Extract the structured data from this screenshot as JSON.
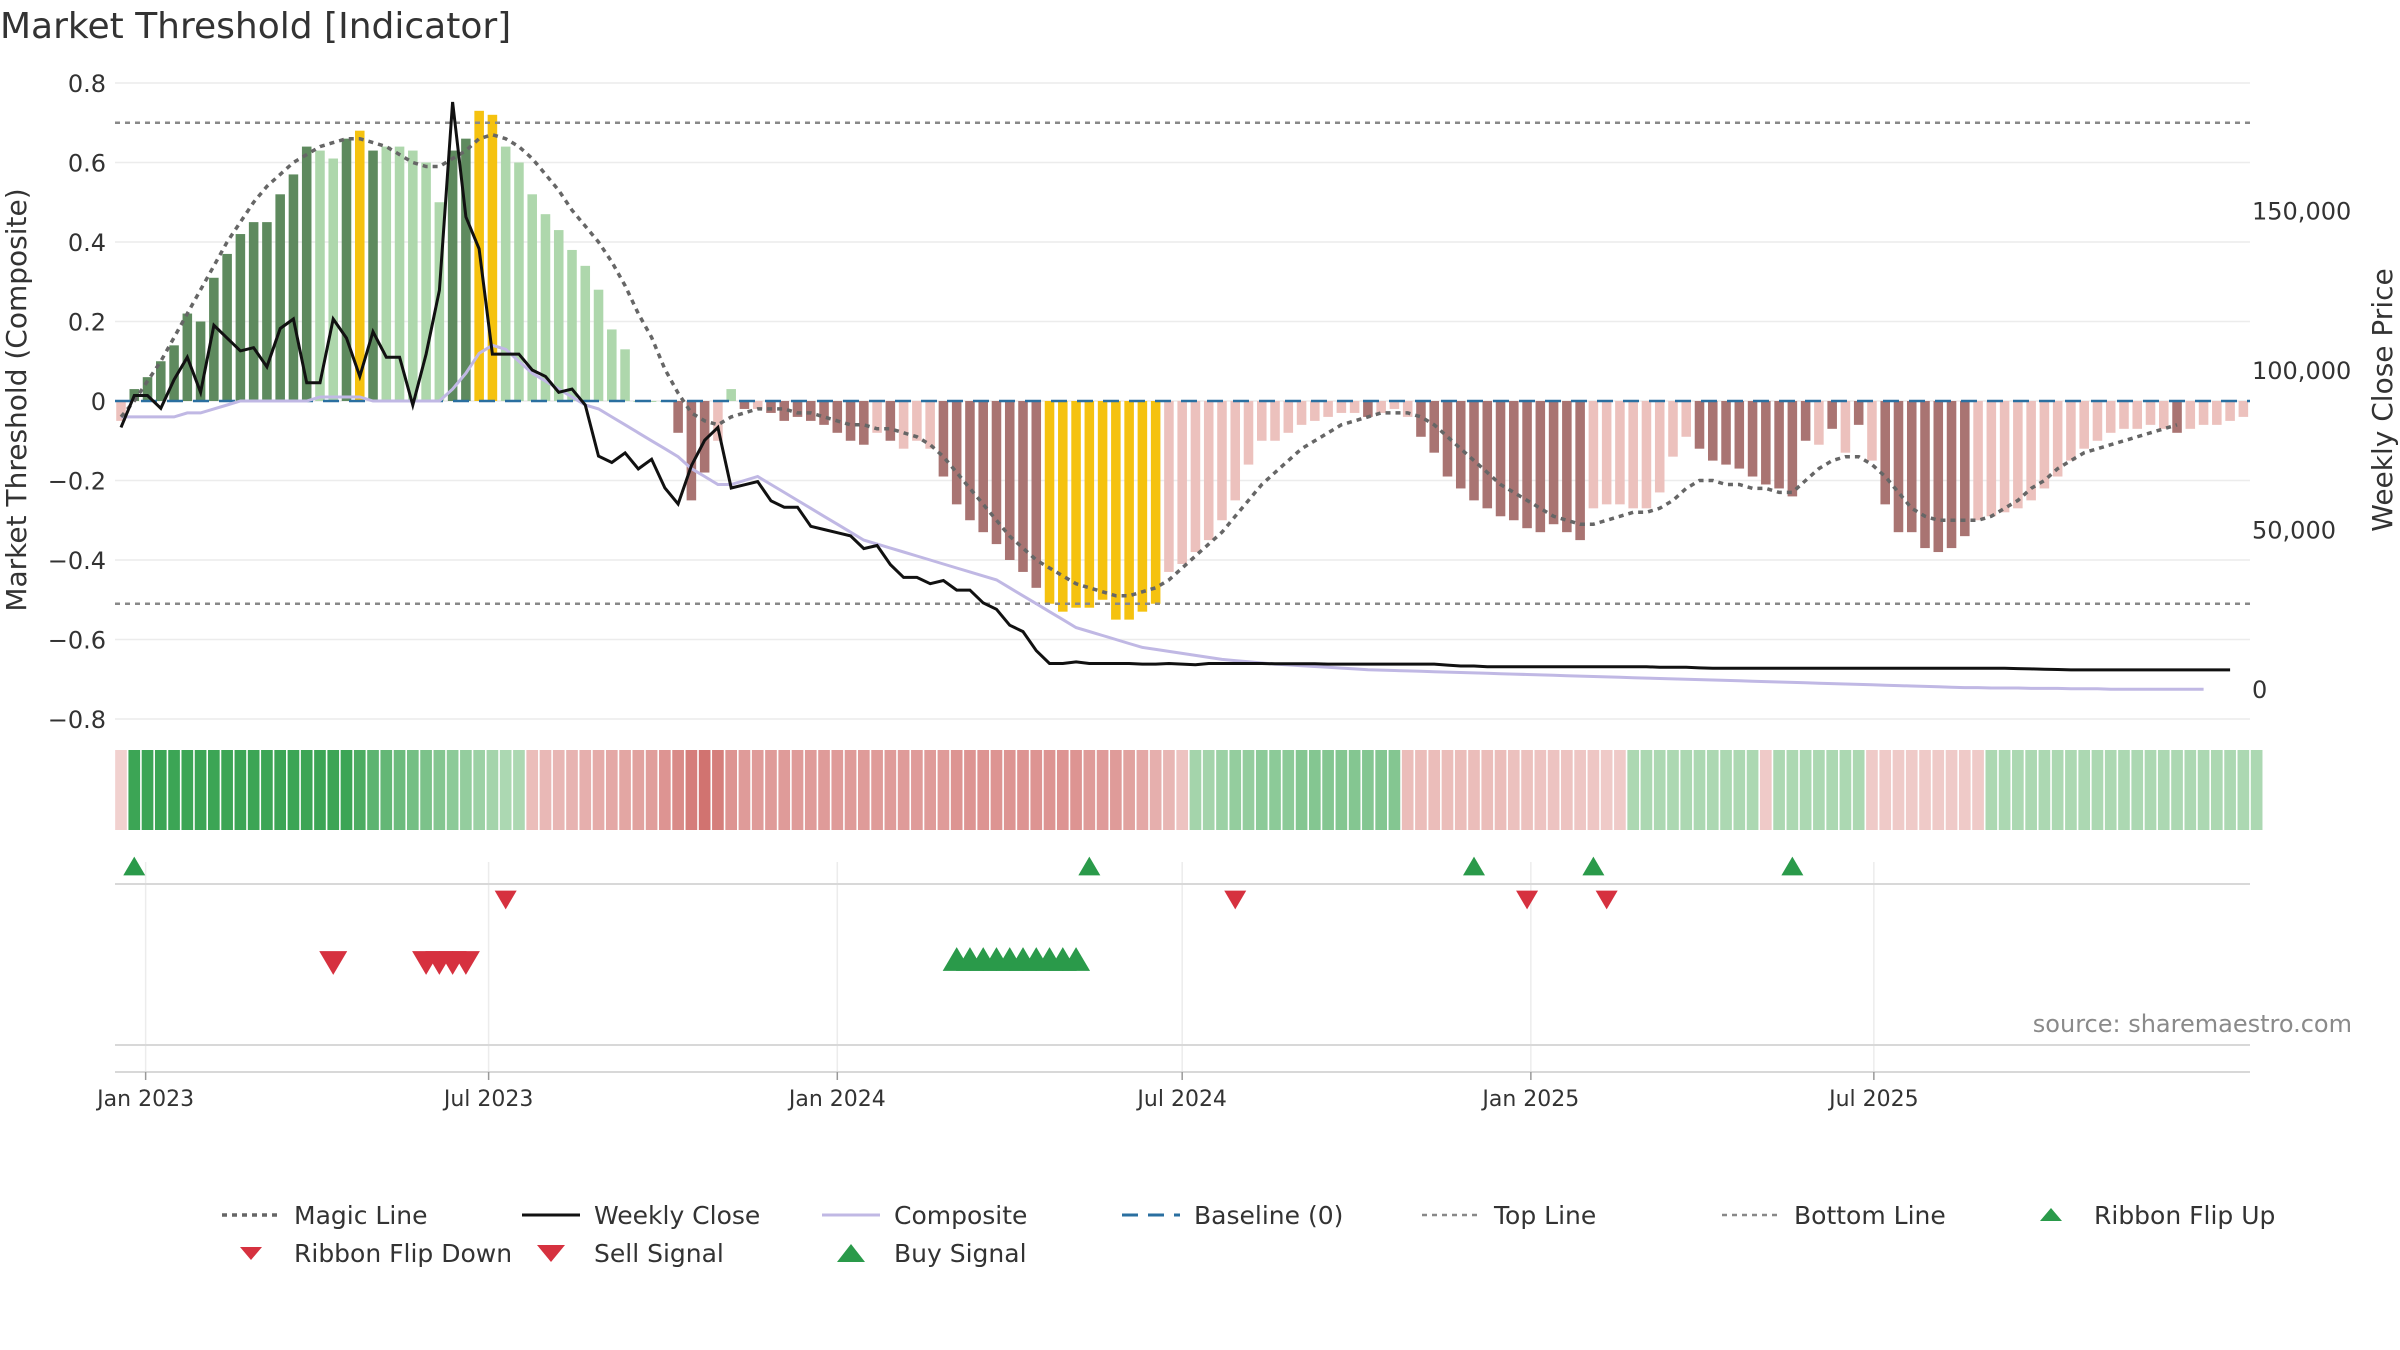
{
  "chart_title": "Market Threshold [Indicator]",
  "source": "source: sharemaestro.com",
  "colors": {
    "bar_dark_green": "#5e8a5e",
    "bar_light_green": "#aed7ac",
    "bar_yellow": "#f5c20f",
    "bar_dark_red": "#a97472",
    "bar_light_red": "#ecc1bd",
    "magic_line": "#666666",
    "weekly_close": "#111111",
    "composite": "#c0b8e4",
    "baseline": "#2a6fa0",
    "threshold": "#888888",
    "buy": "#2a9a4a",
    "sell": "#d6313f"
  },
  "chart_data": {
    "type": "bar",
    "title": "Market Threshold [Indicator]",
    "ylabel": "Market Threshold (Composite)",
    "ylabel_right": "Weekly Close Price",
    "ylim": [
      -0.8,
      0.8
    ],
    "ylim_right": [
      0,
      200000
    ],
    "yticks": [
      0.8,
      0.6,
      0.4,
      0.2,
      0,
      -0.2,
      -0.4,
      -0.6,
      -0.8
    ],
    "yticks_labels": [
      "0.8",
      "0.6",
      "0.4",
      "0.2",
      "0",
      "−0.2",
      "−0.4",
      "−0.6",
      "−0.8"
    ],
    "yticks_right": [
      150000,
      100000,
      50000,
      0
    ],
    "yticks_right_labels": [
      "150,000",
      "100,000",
      "50,000",
      "0"
    ],
    "x_start": "2022-12-19",
    "x_step_days": 7,
    "x_ticks": [
      "2023-01-01",
      "2023-07-01",
      "2024-01-01",
      "2024-07-01",
      "2025-01-01",
      "2025-07-01"
    ],
    "x_tick_labels": [
      "Jan 2023",
      "Jul 2023",
      "Jan 2024",
      "Jul 2024",
      "Jan 2025",
      "Jul 2025"
    ],
    "top_line": 0.7,
    "bottom_line": -0.51,
    "baseline": 0,
    "histogram": [
      -0.05,
      0.03,
      0.06,
      0.1,
      0.14,
      0.22,
      0.2,
      0.31,
      0.37,
      0.42,
      0.45,
      0.45,
      0.52,
      0.57,
      0.64,
      0.63,
      0.61,
      0.66,
      0.68,
      0.63,
      0.64,
      0.64,
      0.63,
      0.6,
      0.5,
      0.63,
      0.66,
      0.73,
      0.72,
      0.64,
      0.6,
      0.52,
      0.47,
      0.43,
      0.38,
      0.34,
      0.28,
      0.18,
      0.13,
      0,
      0,
      0,
      -0.08,
      -0.25,
      -0.18,
      -0.1,
      0.03,
      -0.02,
      -0.02,
      -0.03,
      -0.05,
      -0.04,
      -0.05,
      -0.06,
      -0.08,
      -0.1,
      -0.11,
      -0.08,
      -0.1,
      -0.12,
      -0.1,
      -0.12,
      -0.19,
      -0.26,
      -0.3,
      -0.33,
      -0.36,
      -0.4,
      -0.43,
      -0.47,
      -0.51,
      -0.53,
      -0.52,
      -0.52,
      -0.5,
      -0.55,
      -0.55,
      -0.53,
      -0.51,
      -0.43,
      -0.41,
      -0.38,
      -0.35,
      -0.3,
      -0.25,
      -0.16,
      -0.1,
      -0.1,
      -0.08,
      -0.06,
      -0.05,
      -0.04,
      -0.03,
      -0.03,
      -0.04,
      -0.03,
      -0.02,
      -0.04,
      -0.09,
      -0.13,
      -0.19,
      -0.22,
      -0.25,
      -0.27,
      -0.29,
      -0.3,
      -0.32,
      -0.33,
      -0.31,
      -0.33,
      -0.35,
      -0.27,
      -0.26,
      -0.26,
      -0.27,
      -0.27,
      -0.23,
      -0.14,
      -0.09,
      -0.12,
      -0.15,
      -0.16,
      -0.17,
      -0.19,
      -0.21,
      -0.22,
      -0.24,
      -0.1,
      -0.11,
      -0.07,
      -0.13,
      -0.06,
      -0.15,
      -0.26,
      -0.33,
      -0.33,
      -0.37,
      -0.38,
      -0.37,
      -0.34,
      -0.3,
      -0.29,
      -0.28,
      -0.27,
      -0.25,
      -0.22,
      -0.19,
      -0.15,
      -0.12,
      -0.1,
      -0.08,
      -0.07,
      -0.07,
      -0.06,
      -0.07,
      -0.08,
      -0.07,
      -0.06,
      -0.06,
      -0.05,
      -0.04
    ],
    "histogram_colors": [
      "lr",
      "dg",
      "dg",
      "dg",
      "dg",
      "dg",
      "dg",
      "dg",
      "dg",
      "dg",
      "dg",
      "dg",
      "dg",
      "dg",
      "dg",
      "lg",
      "lg",
      "dg",
      "y",
      "dg",
      "lg",
      "lg",
      "lg",
      "lg",
      "lg",
      "dg",
      "dg",
      "y",
      "y",
      "lg",
      "lg",
      "lg",
      "lg",
      "lg",
      "lg",
      "lg",
      "lg",
      "lg",
      "lg",
      "lg",
      "lg",
      "lg",
      "dr",
      "dr",
      "dr",
      "lr",
      "lg",
      "dr",
      "lr",
      "dr",
      "dr",
      "dr",
      "dr",
      "dr",
      "dr",
      "dr",
      "dr",
      "lr",
      "dr",
      "lr",
      "lr",
      "lr",
      "dr",
      "dr",
      "dr",
      "dr",
      "dr",
      "dr",
      "dr",
      "dr",
      "y",
      "y",
      "y",
      "y",
      "y",
      "y",
      "y",
      "y",
      "y",
      "lr",
      "lr",
      "lr",
      "lr",
      "lr",
      "lr",
      "lr",
      "lr",
      "lr",
      "lr",
      "lr",
      "lr",
      "lr",
      "lr",
      "lr",
      "dr",
      "lr",
      "lr",
      "lr",
      "dr",
      "dr",
      "dr",
      "dr",
      "dr",
      "dr",
      "dr",
      "dr",
      "dr",
      "dr",
      "dr",
      "dr",
      "dr",
      "lr",
      "lr",
      "lr",
      "lr",
      "lr",
      "lr",
      "lr",
      "lr",
      "dr",
      "dr",
      "dr",
      "dr",
      "dr",
      "dr",
      "dr",
      "dr",
      "dr",
      "lr",
      "dr",
      "lr",
      "dr",
      "lr",
      "dr",
      "dr",
      "dr",
      "dr",
      "dr",
      "dr",
      "dr",
      "lr",
      "lr",
      "lr",
      "lr",
      "lr",
      "lr",
      "lr",
      "lr",
      "lr",
      "lr",
      "lr",
      "lr",
      "lr",
      "lr",
      "lr",
      "dr",
      "lr",
      "lr",
      "lr",
      "lr",
      "lr"
    ],
    "magic_line": [
      -0.04,
      0,
      0.05,
      0.1,
      0.16,
      0.22,
      0.28,
      0.34,
      0.4,
      0.45,
      0.5,
      0.54,
      0.57,
      0.6,
      0.62,
      0.64,
      0.65,
      0.66,
      0.66,
      0.65,
      0.64,
      0.62,
      0.6,
      0.59,
      0.59,
      0.61,
      0.63,
      0.66,
      0.67,
      0.66,
      0.64,
      0.61,
      0.57,
      0.53,
      0.48,
      0.44,
      0.4,
      0.35,
      0.29,
      0.22,
      0.16,
      0.08,
      0.02,
      -0.03,
      -0.05,
      -0.06,
      -0.04,
      -0.03,
      -0.02,
      -0.02,
      -0.02,
      -0.03,
      -0.03,
      -0.04,
      -0.05,
      -0.06,
      -0.06,
      -0.07,
      -0.07,
      -0.08,
      -0.09,
      -0.11,
      -0.14,
      -0.18,
      -0.22,
      -0.26,
      -0.3,
      -0.34,
      -0.37,
      -0.4,
      -0.42,
      -0.44,
      -0.46,
      -0.47,
      -0.48,
      -0.49,
      -0.49,
      -0.48,
      -0.47,
      -0.45,
      -0.42,
      -0.39,
      -0.36,
      -0.33,
      -0.29,
      -0.25,
      -0.21,
      -0.18,
      -0.15,
      -0.12,
      -0.1,
      -0.08,
      -0.06,
      -0.05,
      -0.04,
      -0.03,
      -0.03,
      -0.03,
      -0.04,
      -0.06,
      -0.09,
      -0.12,
      -0.15,
      -0.18,
      -0.21,
      -0.23,
      -0.25,
      -0.27,
      -0.29,
      -0.3,
      -0.31,
      -0.31,
      -0.3,
      -0.29,
      -0.28,
      -0.28,
      -0.27,
      -0.25,
      -0.22,
      -0.2,
      -0.2,
      -0.21,
      -0.21,
      -0.22,
      -0.22,
      -0.23,
      -0.23,
      -0.2,
      -0.17,
      -0.15,
      -0.14,
      -0.14,
      -0.16,
      -0.19,
      -0.23,
      -0.27,
      -0.29,
      -0.3,
      -0.3,
      -0.3,
      -0.3,
      -0.29,
      -0.27,
      -0.25,
      -0.22,
      -0.2,
      -0.17,
      -0.15,
      -0.13,
      -0.12,
      -0.11,
      -0.1,
      -0.09,
      -0.08,
      -0.07,
      -0.06
    ],
    "composite": [
      -0.04,
      -0.04,
      -0.04,
      -0.04,
      -0.04,
      -0.03,
      -0.03,
      -0.02,
      -0.01,
      0,
      0,
      0,
      0,
      0,
      0,
      0.01,
      0.01,
      0.01,
      0.01,
      0,
      0,
      0,
      0,
      0,
      0,
      0.03,
      0.07,
      0.12,
      0.14,
      0.13,
      0.1,
      0.07,
      0.05,
      0.03,
      0.01,
      -0.01,
      -0.02,
      -0.04,
      -0.06,
      -0.08,
      -0.1,
      -0.12,
      -0.14,
      -0.17,
      -0.19,
      -0.21,
      -0.21,
      -0.2,
      -0.19,
      -0.21,
      -0.23,
      -0.25,
      -0.27,
      -0.29,
      -0.31,
      -0.33,
      -0.35,
      -0.36,
      -0.37,
      -0.38,
      -0.39,
      -0.4,
      -0.41,
      -0.42,
      -0.43,
      -0.44,
      -0.45,
      -0.47,
      -0.49,
      -0.51,
      -0.53,
      -0.55,
      -0.57,
      -0.58,
      -0.59,
      -0.6,
      -0.61,
      -0.62,
      -0.625,
      -0.63,
      -0.635,
      -0.64,
      -0.645,
      -0.65,
      -0.653,
      -0.656,
      -0.659,
      -0.662,
      -0.664,
      -0.666,
      -0.668,
      -0.67,
      -0.672,
      -0.674,
      -0.676,
      -0.677,
      -0.678,
      -0.679,
      -0.68,
      -0.681,
      -0.682,
      -0.683,
      -0.684,
      -0.685,
      -0.686,
      -0.687,
      -0.688,
      -0.689,
      -0.69,
      -0.691,
      -0.692,
      -0.693,
      -0.694,
      -0.695,
      -0.696,
      -0.697,
      -0.698,
      -0.699,
      -0.7,
      -0.701,
      -0.702,
      -0.703,
      -0.704,
      -0.705,
      -0.706,
      -0.707,
      -0.708,
      -0.709,
      -0.71,
      -0.711,
      -0.712,
      -0.713,
      -0.714,
      -0.715,
      -0.716,
      -0.717,
      -0.718,
      -0.719,
      -0.72,
      -0.721,
      -0.721,
      -0.722,
      -0.722,
      -0.722,
      -0.723,
      -0.723,
      -0.723,
      -0.724,
      -0.724,
      -0.724,
      -0.725,
      -0.725,
      -0.725,
      -0.725,
      -0.725,
      -0.725,
      -0.725,
      -0.725
    ],
    "weekly_close": [
      82000,
      92000,
      92000,
      88000,
      97000,
      104000,
      93000,
      114000,
      110000,
      106000,
      107000,
      101000,
      113000,
      116000,
      96000,
      96000,
      116000,
      110000,
      98000,
      112000,
      104000,
      104000,
      89000,
      105000,
      125000,
      184000,
      148000,
      138000,
      105000,
      105000,
      105000,
      100000,
      98000,
      93000,
      94000,
      89000,
      73000,
      71000,
      74000,
      69000,
      72000,
      63000,
      58000,
      70000,
      78000,
      82000,
      63000,
      64000,
      65000,
      59000,
      57000,
      57000,
      51000,
      50000,
      49000,
      48000,
      44000,
      45000,
      39000,
      35000,
      35000,
      33000,
      34000,
      31000,
      31000,
      27000,
      25000,
      20000,
      18000,
      12000,
      8000,
      8000,
      8500,
      8000,
      8000,
      8000,
      8000,
      7800,
      7800,
      8000,
      7800,
      7600,
      8000,
      8000,
      8000,
      8000,
      8000,
      7900,
      7900,
      7900,
      7900,
      7800,
      7800,
      7800,
      7800,
      7800,
      7800,
      7800,
      7800,
      7800,
      7500,
      7200,
      7200,
      7000,
      7000,
      7000,
      7000,
      7000,
      7000,
      7000,
      7000,
      7000,
      7000,
      7000,
      7000,
      7000,
      6800,
      6800,
      6800,
      6600,
      6500,
      6500,
      6500,
      6500,
      6500,
      6500,
      6500,
      6500,
      6500,
      6500,
      6500,
      6500,
      6500,
      6500,
      6500,
      6500,
      6500,
      6500,
      6500,
      6500,
      6500,
      6500,
      6500,
      6400,
      6300,
      6200,
      6100,
      6000,
      6000,
      6000,
      6000,
      6000,
      6000,
      6000,
      6000,
      6000,
      6000,
      6000,
      6000,
      6000
    ],
    "ribbon": [
      -0.1,
      1,
      1,
      1,
      1,
      1,
      1,
      1,
      1,
      1,
      1,
      1,
      1,
      1,
      1,
      1,
      1,
      1,
      0.9,
      0.8,
      0.75,
      0.7,
      0.65,
      0.6,
      0.55,
      0.5,
      0.45,
      0.4,
      0.35,
      0.3,
      0.3,
      -0.25,
      -0.28,
      -0.3,
      -0.32,
      -0.35,
      -0.38,
      -0.4,
      -0.42,
      -0.45,
      -0.48,
      -0.55,
      -0.62,
      -0.72,
      -0.8,
      -0.72,
      -0.55,
      -0.5,
      -0.5,
      -0.5,
      -0.5,
      -0.5,
      -0.5,
      -0.5,
      -0.5,
      -0.5,
      -0.5,
      -0.5,
      -0.5,
      -0.5,
      -0.5,
      -0.5,
      -0.5,
      -0.55,
      -0.55,
      -0.55,
      -0.55,
      -0.55,
      -0.55,
      -0.55,
      -0.55,
      -0.55,
      -0.55,
      -0.5,
      -0.5,
      -0.5,
      -0.45,
      -0.4,
      -0.35,
      -0.3,
      -0.2,
      0.35,
      0.35,
      0.4,
      0.45,
      0.45,
      0.5,
      0.5,
      0.5,
      0.55,
      0.55,
      0.55,
      0.55,
      0.55,
      0.55,
      0.55,
      0.55,
      -0.25,
      -0.25,
      -0.25,
      -0.25,
      -0.25,
      -0.25,
      -0.25,
      -0.25,
      -0.22,
      -0.22,
      -0.2,
      -0.2,
      -0.2,
      -0.18,
      -0.18,
      -0.15,
      -0.15,
      0.3,
      0.3,
      0.3,
      0.3,
      0.3,
      0.3,
      0.3,
      0.3,
      0.3,
      0.3,
      -0.15,
      0.3,
      0.3,
      0.3,
      0.3,
      0.3,
      0.3,
      0.3,
      -0.15,
      -0.15,
      -0.15,
      -0.15,
      -0.15,
      -0.15,
      -0.15,
      -0.15,
      -0.15,
      0.3,
      0.3,
      0.3,
      0.3,
      0.3,
      0.3,
      0.3,
      0.3,
      0.3,
      0.3,
      0.3,
      0.3,
      0.3,
      0.3,
      0.3,
      0.3,
      0.3,
      0.3,
      0.3,
      0.3,
      0.3
    ],
    "ribbon_flip_up": [
      1,
      73,
      102,
      111,
      126
    ],
    "ribbon_flip_down": [
      29,
      84,
      106,
      112
    ],
    "sell_signal": [
      16,
      23,
      24,
      25,
      26
    ],
    "buy_signal": [
      63,
      64,
      65,
      66,
      67,
      68,
      69,
      70,
      71,
      72
    ]
  },
  "legend": [
    {
      "key": "magic",
      "label": "Magic Line"
    },
    {
      "key": "close",
      "label": "Weekly Close"
    },
    {
      "key": "composite",
      "label": "Composite"
    },
    {
      "key": "baseline",
      "label": "Baseline (0)"
    },
    {
      "key": "top",
      "label": "Top Line"
    },
    {
      "key": "bottom",
      "label": "Bottom Line"
    },
    {
      "key": "flipup",
      "label": "Ribbon Flip Up"
    },
    {
      "key": "flipdown",
      "label": "Ribbon Flip Down"
    },
    {
      "key": "sell",
      "label": "Sell Signal"
    },
    {
      "key": "buy",
      "label": "Buy Signal"
    }
  ]
}
